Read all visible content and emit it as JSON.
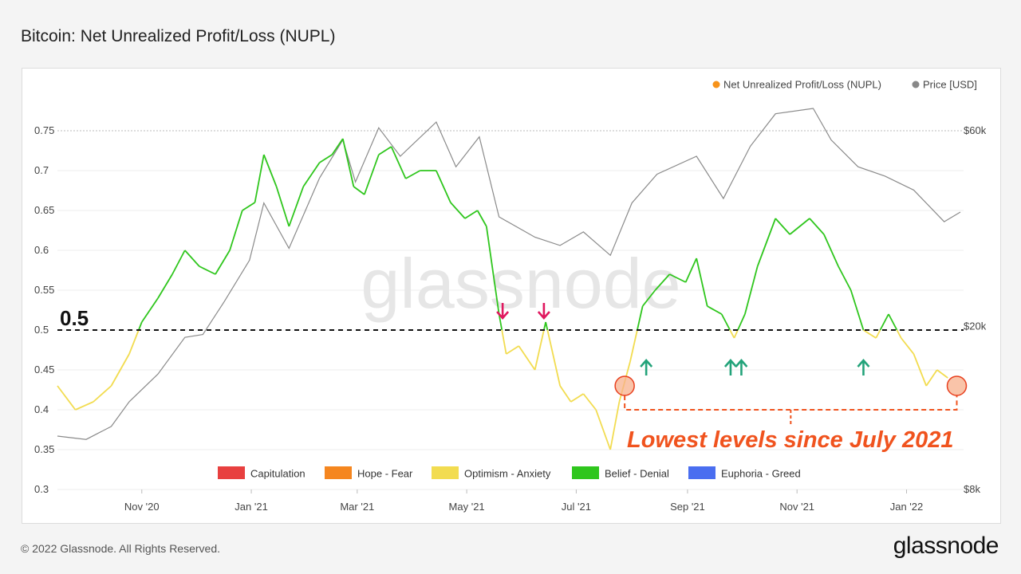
{
  "page": {
    "title": "Bitcoin: Net Unrealized Profit/Loss (NUPL)",
    "copyright": "© 2022 Glassnode. All Rights Reserved.",
    "brand": "glassnode",
    "watermark": "glassnode"
  },
  "chart_data": {
    "type": "line",
    "title": "Bitcoin: Net Unrealized Profit/Loss (NUPL)",
    "legend_top": [
      {
        "name": "Net Unrealized Profit/Loss (NUPL)",
        "color": "#f7931a"
      },
      {
        "name": "Price [USD]",
        "color": "#888888"
      }
    ],
    "legend_bottom": [
      {
        "name": "Capitulation",
        "color": "#e8403f"
      },
      {
        "name": "Hope - Fear",
        "color": "#f5861f"
      },
      {
        "name": "Optimism - Anxiety",
        "color": "#f2dc50"
      },
      {
        "name": "Belief - Denial",
        "color": "#2fc61d"
      },
      {
        "name": "Euphoria - Greed",
        "color": "#4a6ef0"
      }
    ],
    "y_left": {
      "ticks": [
        "0.75",
        "0.7",
        "0.65",
        "0.6",
        "0.55",
        "0.5",
        "0.45",
        "0.4",
        "0.35",
        "0.3"
      ],
      "range": [
        0.3,
        0.75
      ]
    },
    "y_right": {
      "ticks": [
        "$60k",
        "$20k",
        "$8k"
      ],
      "scale": "log"
    },
    "x_ticks": [
      "Nov '20",
      "Jan '21",
      "Mar '21",
      "May '21",
      "Jul '21",
      "Sep '21",
      "Nov '21",
      "Jan '22"
    ],
    "x_range": [
      "2020-09-15",
      "2022-01-31"
    ],
    "grid": true,
    "nupl": {
      "name": "Net Unrealized Profit/Loss (NUPL)",
      "points": [
        [
          "2020-09-15",
          0.43
        ],
        [
          "2020-09-25",
          0.4
        ],
        [
          "2020-10-05",
          0.41
        ],
        [
          "2020-10-15",
          0.43
        ],
        [
          "2020-10-25",
          0.47
        ],
        [
          "2020-11-01",
          0.51
        ],
        [
          "2020-11-10",
          0.54
        ],
        [
          "2020-11-18",
          0.57
        ],
        [
          "2020-11-25",
          0.6
        ],
        [
          "2020-12-03",
          0.58
        ],
        [
          "2020-12-12",
          0.57
        ],
        [
          "2020-12-20",
          0.6
        ],
        [
          "2020-12-27",
          0.65
        ],
        [
          "2021-01-03",
          0.66
        ],
        [
          "2021-01-08",
          0.72
        ],
        [
          "2021-01-15",
          0.68
        ],
        [
          "2021-01-22",
          0.63
        ],
        [
          "2021-01-30",
          0.68
        ],
        [
          "2021-02-08",
          0.71
        ],
        [
          "2021-02-15",
          0.72
        ],
        [
          "2021-02-21",
          0.74
        ],
        [
          "2021-02-27",
          0.68
        ],
        [
          "2021-03-05",
          0.67
        ],
        [
          "2021-03-13",
          0.72
        ],
        [
          "2021-03-20",
          0.73
        ],
        [
          "2021-03-28",
          0.69
        ],
        [
          "2021-04-05",
          0.7
        ],
        [
          "2021-04-14",
          0.7
        ],
        [
          "2021-04-22",
          0.66
        ],
        [
          "2021-04-30",
          0.64
        ],
        [
          "2021-05-07",
          0.65
        ],
        [
          "2021-05-12",
          0.63
        ],
        [
          "2021-05-19",
          0.52
        ],
        [
          "2021-05-23",
          0.47
        ],
        [
          "2021-05-30",
          0.48
        ],
        [
          "2021-06-08",
          0.45
        ],
        [
          "2021-06-14",
          0.51
        ],
        [
          "2021-06-22",
          0.43
        ],
        [
          "2021-06-28",
          0.41
        ],
        [
          "2021-07-05",
          0.42
        ],
        [
          "2021-07-12",
          0.4
        ],
        [
          "2021-07-20",
          0.35
        ],
        [
          "2021-07-25",
          0.41
        ],
        [
          "2021-07-31",
          0.46
        ],
        [
          "2021-08-07",
          0.53
        ],
        [
          "2021-08-14",
          0.55
        ],
        [
          "2021-08-22",
          0.57
        ],
        [
          "2021-08-31",
          0.56
        ],
        [
          "2021-09-06",
          0.59
        ],
        [
          "2021-09-12",
          0.53
        ],
        [
          "2021-09-20",
          0.52
        ],
        [
          "2021-09-27",
          0.49
        ],
        [
          "2021-10-03",
          0.52
        ],
        [
          "2021-10-10",
          0.58
        ],
        [
          "2021-10-20",
          0.64
        ],
        [
          "2021-10-28",
          0.62
        ],
        [
          "2021-11-08",
          0.64
        ],
        [
          "2021-11-16",
          0.62
        ],
        [
          "2021-11-24",
          0.58
        ],
        [
          "2021-12-01",
          0.55
        ],
        [
          "2021-12-08",
          0.5
        ],
        [
          "2021-12-15",
          0.49
        ],
        [
          "2021-12-22",
          0.52
        ],
        [
          "2021-12-29",
          0.49
        ],
        [
          "2022-01-05",
          0.47
        ],
        [
          "2022-01-12",
          0.43
        ],
        [
          "2022-01-18",
          0.45
        ],
        [
          "2022-01-24",
          0.44
        ]
      ]
    },
    "price": {
      "name": "Price [USD]",
      "points": [
        [
          "2020-09-15",
          10800
        ],
        [
          "2020-10-01",
          10600
        ],
        [
          "2020-10-15",
          11400
        ],
        [
          "2020-10-25",
          13100
        ],
        [
          "2020-11-10",
          15300
        ],
        [
          "2020-11-25",
          18800
        ],
        [
          "2020-12-05",
          19100
        ],
        [
          "2020-12-17",
          23000
        ],
        [
          "2020-12-31",
          29000
        ],
        [
          "2021-01-08",
          40000
        ],
        [
          "2021-01-22",
          31000
        ],
        [
          "2021-02-08",
          46000
        ],
        [
          "2021-02-21",
          57000
        ],
        [
          "2021-02-28",
          45000
        ],
        [
          "2021-03-13",
          61000
        ],
        [
          "2021-03-25",
          52000
        ],
        [
          "2021-04-14",
          63000
        ],
        [
          "2021-04-25",
          49000
        ],
        [
          "2021-05-08",
          58000
        ],
        [
          "2021-05-19",
          37000
        ],
        [
          "2021-06-08",
          33000
        ],
        [
          "2021-06-22",
          31500
        ],
        [
          "2021-07-05",
          34000
        ],
        [
          "2021-07-20",
          29800
        ],
        [
          "2021-08-01",
          40000
        ],
        [
          "2021-08-15",
          47000
        ],
        [
          "2021-09-06",
          52000
        ],
        [
          "2021-09-21",
          41000
        ],
        [
          "2021-10-06",
          55000
        ],
        [
          "2021-10-20",
          66000
        ],
        [
          "2021-11-10",
          68000
        ],
        [
          "2021-11-20",
          57000
        ],
        [
          "2021-12-05",
          49000
        ],
        [
          "2021-12-20",
          46500
        ],
        [
          "2022-01-05",
          43000
        ],
        [
          "2022-01-22",
          36000
        ],
        [
          "2022-01-31",
          38000
        ]
      ]
    },
    "threshold": {
      "value": 0.5,
      "label": "0.5"
    },
    "annotations": {
      "callout": "Lowest levels since July 2021",
      "marker_dates": [
        "2021-07-28",
        "2022-01-29"
      ],
      "marker_value": 0.43,
      "up_arrow_dates": [
        "2021-08-09",
        "2021-09-25",
        "2021-10-01",
        "2021-12-08"
      ],
      "down_arrow_dates": [
        "2021-05-21",
        "2021-06-13"
      ]
    }
  }
}
